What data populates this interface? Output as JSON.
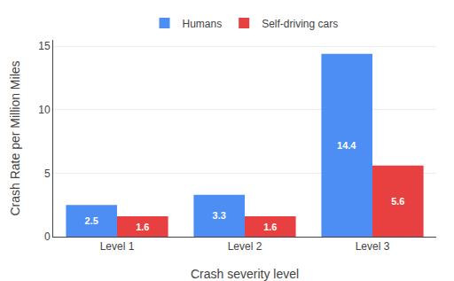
{
  "chart_data": {
    "type": "bar",
    "categories": [
      "Level 1",
      "Level 2",
      "Level 3"
    ],
    "series": [
      {
        "name": "Humans",
        "color": "#4D8EF5",
        "values": [
          2.5,
          3.3,
          14.4
        ]
      },
      {
        "name": "Self-driving cars",
        "color": "#E84040",
        "values": [
          1.6,
          1.6,
          5.6
        ]
      }
    ],
    "xlabel": "Crash severity level",
    "ylabel": "Crash Rate per Million Miles",
    "ylim": [
      0,
      15.5
    ],
    "yticks": [
      0,
      5,
      10,
      15
    ],
    "grid": true,
    "legend": "top",
    "data_labels": true
  }
}
